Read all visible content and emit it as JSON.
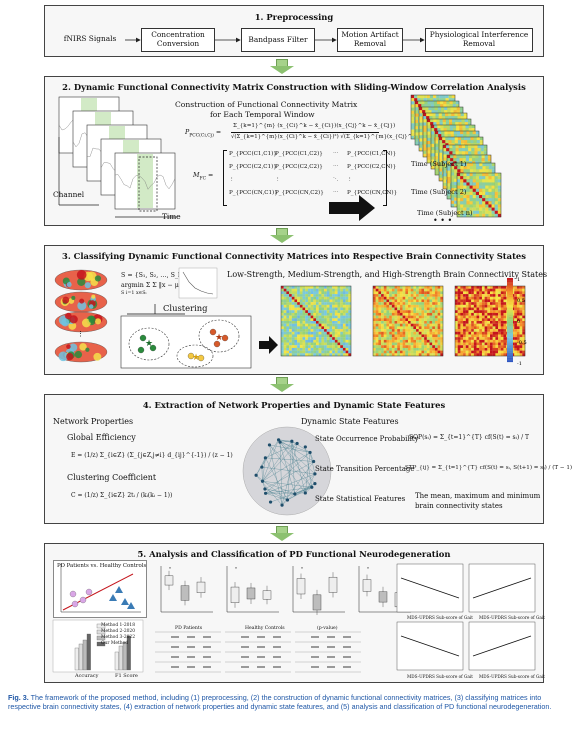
{
  "colors": {
    "arrow": "#8cc170",
    "caption": "#1f57a6",
    "heat_hi": "#c4151c",
    "heat_lo": "#2a4fbf",
    "green_window": "#cde8c0"
  },
  "panel1": {
    "title": "1. Preprocessing",
    "steps": [
      "fNIRS Signals",
      "Concentration Conversion",
      "Bandpass Filter",
      "Motion Artifact Removal",
      "Physiological Interference Removal"
    ]
  },
  "panel2": {
    "title": "2. Dynamic Functional Connectivity Matrix Construction with Sliding-Window Correlation Analysis",
    "subtitle_l1": "Construction of Functional Connectivity Matrix",
    "subtitle_l2": "for Each Temporal Window",
    "label_channel": "Channel",
    "label_time": "Time",
    "time_labels": [
      "Time (Subject 1)",
      "Time (Subject 2)",
      "Time (Subject n)"
    ],
    "eq_p_lhs": "P",
    "eq_p_sub": "PCC(Ci,Cj)",
    "eq_p_num": "Σ_{k=1}^{m} (x_{Ci}^k − x̄_{Ci})(x_{Cj}^k − x̄_{Cj})",
    "eq_p_den": "√(Σ_{k=1}^{m}(x_{Ci}^k − x̄_{Ci})²) √(Σ_{k=1}^{m}(x_{Cj}^k − x̄_{Cj})²)",
    "eq_m_lhs": "M",
    "eq_m_sub": "FC",
    "matrix_row1": [
      "P_{PCC(C1,C1)}",
      "P_{PCC(C1,C2)}",
      "⋯",
      "P_{PCC(C1,CN)}"
    ],
    "matrix_row2": [
      "P_{PCC(C2,C1)}",
      "P_{PCC(C2,C2)}",
      "⋯",
      "P_{PCC(C2,CN)}"
    ],
    "matrix_row3": [
      "⋮",
      "⋮",
      "⋱",
      "⋮"
    ],
    "matrix_row4": [
      "P_{PCC(CN,C1)}",
      "P_{PCC(CN,C2)}",
      "⋯",
      "P_{PCC(CN,CN)}"
    ]
  },
  "panel3": {
    "title": "3. Classifying Dynamic Functional Connectivity Matrices into Respective Brain Connectivity States",
    "states_heading": "Low-Strength, Medium-Strength, and High-Strength Brain Connectivity States",
    "clustering_label": "Clustering",
    "eq_s": "S = {S₁, S₂, …, S_k}",
    "eq_argmin": "argmin Σ Σ ‖x − μᵢ‖²",
    "eq_argmin_sub": "S   i=1 x∈Sᵢ",
    "colorbar_ticks": [
      "1",
      "0.5",
      "0",
      "-0.5",
      "-1"
    ]
  },
  "panel4": {
    "title": "4. Extraction of Network Properties and Dynamic State Features",
    "net_heading": "Network Properties",
    "global_eff": "Global Efficiency",
    "eq_e": "E = (1/z) Σ_{i∈Z} (Σ_{j∈Z,j≠i} d_{ij}^{-1}) / (z − 1)",
    "clustering_coef": "Clustering Coefficient",
    "eq_c": "C = (1/z) Σ_{i∈Z} 2tᵢ / (kᵢ(kᵢ − 1))",
    "dyn_heading": "Dynamic State Features",
    "sop_label": "State Occurrence Probability",
    "eq_sop": "SOP(sᵢ) = Σ_{t=1}^{T} cf(S(t) = sᵢ) / T",
    "stp_label": "State Transition Percentage",
    "eq_stp": "STP_{ij} = Σ_{t=1}^{T} cf(S(t) = sᵢ, S(t+1) = sⱼ) / (T − 1)",
    "ssf_label": "State Statistical Features",
    "ssf_desc_l1": "The mean, maximum and minimum",
    "ssf_desc_l2": "brain connectivity states"
  },
  "panel5": {
    "title": "5. Analysis and Classification of PD Functional Neurodegeneration",
    "scatter_label": "PD Patients vs. Healthy Controls",
    "legend": [
      "Method 1-2018",
      "Method 2-2020",
      "Method 3-2022",
      "Our Method"
    ],
    "bar_xlabels": [
      "Accuracy",
      "F1 Score"
    ],
    "table1_title": "PD Patients",
    "table2_title": "Healthy Controls",
    "table3_title": "(p-value)",
    "xaxis_gait": "MDS-UPDRS Sub-score of Gait"
  },
  "caption": {
    "fig": "Fig. 3.",
    "text": "The framework of the proposed method, including (1) preprocessing, (2) the construction of dynamic functional connectivity matrices, (3) classifying matrices into respective brain connectivity states, (4) extraction of network properties and dynamic state features, and (5) analysis and classification of PD functional neurodegeneration."
  }
}
